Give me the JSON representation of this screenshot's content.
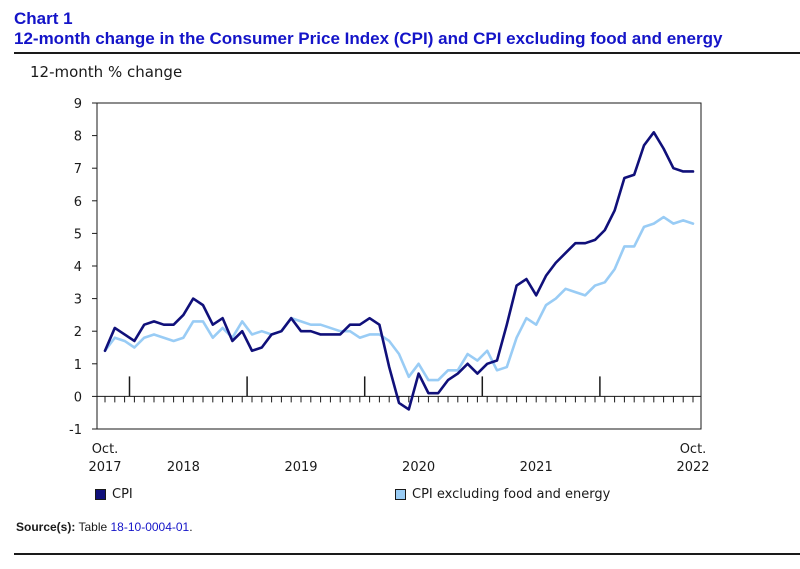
{
  "header": {
    "chart_number": "Chart 1",
    "title": "12-month change in the Consumer Price Index (CPI) and CPI excluding food and energy"
  },
  "source": {
    "label": "Source(s):",
    "text": "Table",
    "link": "18-10-0004-01",
    "suffix": "."
  },
  "chart_data": {
    "type": "line",
    "title": "12-month change in the Consumer Price Index (CPI) and CPI excluding food and energy",
    "ylabel": "12-month % change",
    "xlabel": "",
    "ylim": [
      -1,
      9
    ],
    "yticks": [
      -1,
      0,
      1,
      2,
      3,
      4,
      5,
      6,
      7,
      8,
      9
    ],
    "grid": false,
    "legend_position": "bottom",
    "x_tick_labels": [
      {
        "index": 0,
        "line1": "Oct.",
        "line2": "2017"
      },
      {
        "index": 8,
        "line1": "",
        "line2": "2018"
      },
      {
        "index": 20,
        "line1": "",
        "line2": "2019"
      },
      {
        "index": 32,
        "line1": "",
        "line2": "2020"
      },
      {
        "index": 44,
        "line1": "",
        "line2": "2021"
      },
      {
        "index": 60,
        "line1": "Oct.",
        "line2": "2022"
      }
    ],
    "year_boundaries": [
      3,
      15,
      27,
      39,
      51
    ],
    "x_start": "2017-10",
    "x_end": "2022-10",
    "series": [
      {
        "name": "CPI",
        "color": "#10107a",
        "values": [
          1.4,
          2.1,
          1.9,
          1.7,
          2.2,
          2.3,
          2.2,
          2.2,
          2.5,
          3.0,
          2.8,
          2.2,
          2.4,
          1.7,
          2.0,
          1.4,
          1.5,
          1.9,
          2.0,
          2.4,
          2.0,
          2.0,
          1.9,
          1.9,
          1.9,
          2.2,
          2.2,
          2.4,
          2.2,
          0.9,
          -0.2,
          -0.4,
          0.7,
          0.1,
          0.1,
          0.5,
          0.7,
          1.0,
          0.7,
          1.0,
          1.1,
          2.2,
          3.4,
          3.6,
          3.1,
          3.7,
          4.1,
          4.4,
          4.7,
          4.7,
          4.8,
          5.1,
          5.7,
          6.7,
          6.8,
          7.7,
          8.1,
          7.6,
          7.0,
          6.9,
          6.9
        ]
      },
      {
        "name": "CPI excluding food and energy",
        "color": "#99ccf5",
        "values": [
          1.4,
          1.8,
          1.7,
          1.5,
          1.8,
          1.9,
          1.8,
          1.7,
          1.8,
          2.3,
          2.3,
          1.8,
          2.1,
          1.8,
          2.3,
          1.9,
          2.0,
          1.9,
          2.0,
          2.4,
          2.3,
          2.2,
          2.2,
          2.1,
          2.0,
          2.0,
          1.8,
          1.9,
          1.9,
          1.7,
          1.3,
          0.6,
          1.0,
          0.5,
          0.5,
          0.8,
          0.8,
          1.3,
          1.1,
          1.4,
          0.8,
          0.9,
          1.8,
          2.4,
          2.2,
          2.8,
          3.0,
          3.3,
          3.2,
          3.1,
          3.4,
          3.5,
          3.9,
          4.6,
          4.6,
          5.2,
          5.3,
          5.5,
          5.3,
          5.4,
          5.3
        ]
      }
    ]
  }
}
